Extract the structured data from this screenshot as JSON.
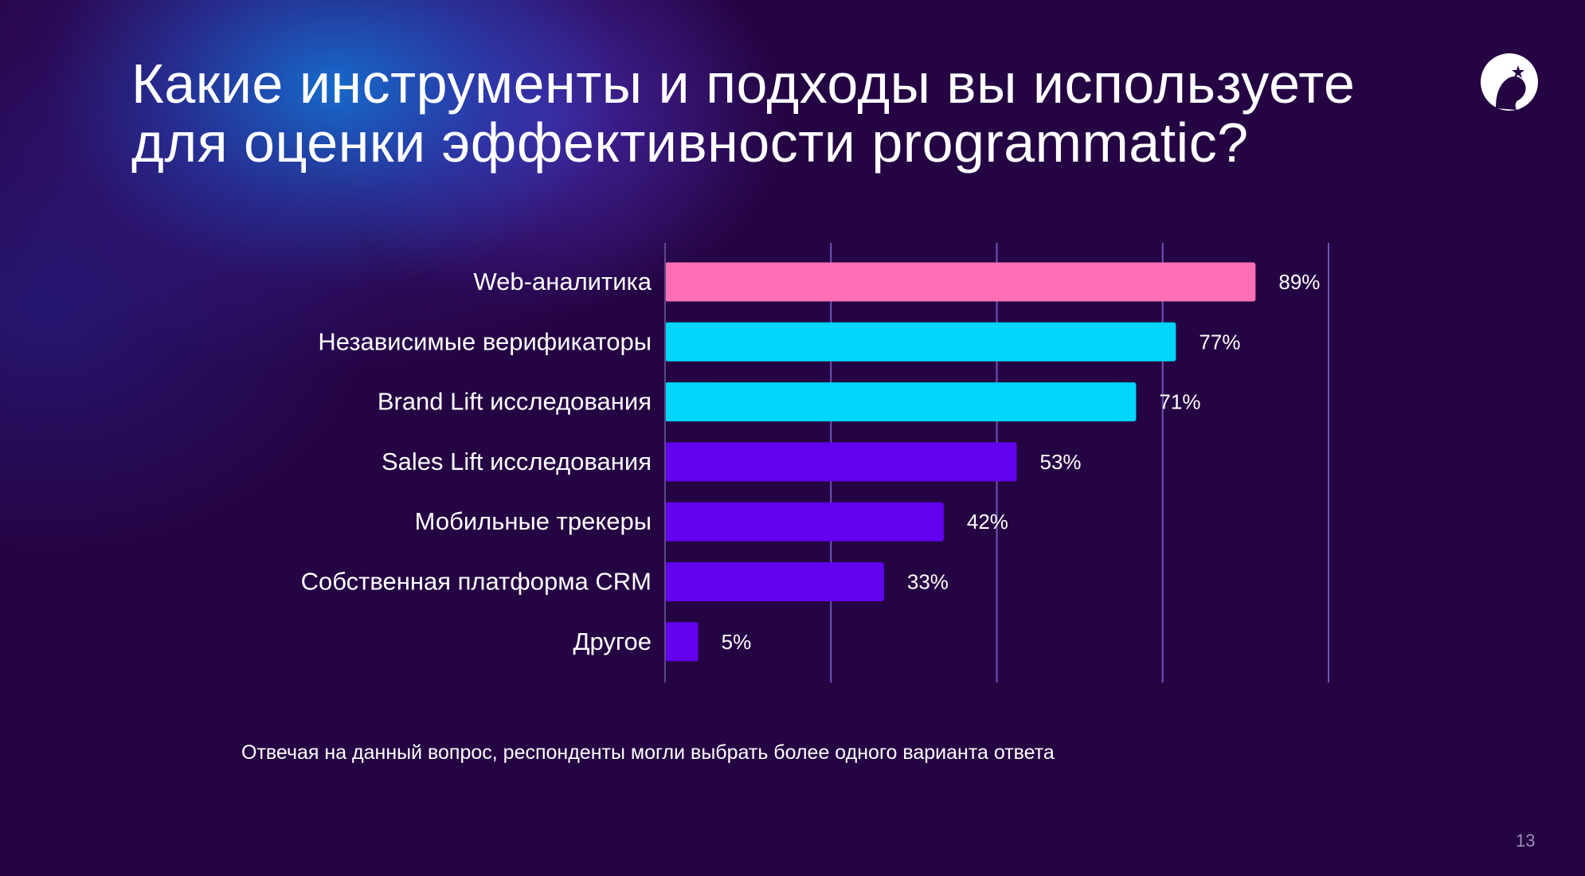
{
  "slide": {
    "title_line1": "Какие инструменты и подходы вы используете",
    "title_line2": "для оценки эффективности programmatic?",
    "footnote": "Отвечая на данный вопрос, респонденты могли выбрать более одного варианта ответа",
    "page_number": "13"
  },
  "colors": {
    "background": "#250443",
    "pink": "#FF6FB5",
    "cyan": "#00D5FA",
    "violet": "#6302EC",
    "gridline": "#6E55B8"
  },
  "chart_data": {
    "type": "bar",
    "orientation": "horizontal",
    "categories": [
      "Web-аналитика",
      "Независимые верификаторы",
      "Brand Lift исследования",
      "Sales Lift исследования",
      "Мобильные трекеры",
      "Собственная платформа CRM",
      "Другое"
    ],
    "values": [
      89,
      77,
      71,
      53,
      42,
      33,
      5
    ],
    "value_labels": [
      "89%",
      "77%",
      "71%",
      "53%",
      "42%",
      "33%",
      "5%"
    ],
    "bar_colors": [
      "#FF6FB5",
      "#00D5FA",
      "#00D5FA",
      "#6302EC",
      "#6302EC",
      "#6302EC",
      "#6302EC"
    ],
    "xlim": [
      0,
      100
    ],
    "grid": true,
    "gridline_values": [
      25,
      50,
      75,
      100
    ]
  }
}
